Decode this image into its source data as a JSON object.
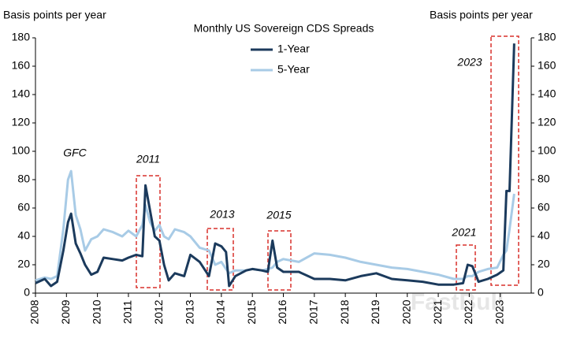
{
  "chart_data": {
    "type": "line",
    "title": "Monthly US Sovereign CDS Spreads",
    "y_label": "Basis points per year",
    "y2_label": "Basis points per year",
    "watermark": "FastBull",
    "x": [
      2008.0,
      2008.3,
      2008.5,
      2008.7,
      2008.9,
      2009.05,
      2009.15,
      2009.3,
      2009.45,
      2009.6,
      2009.8,
      2010.0,
      2010.2,
      2010.5,
      2010.8,
      2011.0,
      2011.25,
      2011.45,
      2011.55,
      2011.7,
      2011.85,
      2012.0,
      2012.15,
      2012.3,
      2012.5,
      2012.8,
      2013.0,
      2013.3,
      2013.6,
      2013.8,
      2014.0,
      2014.15,
      2014.25,
      2014.45,
      2014.8,
      2015.0,
      2015.3,
      2015.5,
      2015.65,
      2015.8,
      2016.0,
      2016.5,
      2017.0,
      2017.5,
      2018.0,
      2018.5,
      2019.0,
      2019.5,
      2020.0,
      2020.5,
      2021.0,
      2021.5,
      2021.8,
      2021.95,
      2022.1,
      2022.3,
      2022.6,
      2022.9,
      2023.1,
      2023.2,
      2023.3,
      2023.45
    ],
    "series": [
      {
        "name": "1-Year",
        "color": "#1b3a5c",
        "values": [
          7,
          10,
          5,
          8,
          30,
          50,
          56,
          35,
          28,
          20,
          13,
          15,
          25,
          24,
          23,
          25,
          27,
          26,
          76,
          58,
          40,
          37,
          20,
          9,
          14,
          12,
          27,
          22,
          12,
          35,
          33,
          29,
          5,
          12,
          16,
          17,
          16,
          15,
          37,
          18,
          15,
          15,
          10,
          10,
          9,
          12,
          14,
          10,
          9,
          8,
          6,
          6,
          7,
          20,
          19,
          8,
          10,
          13,
          16,
          72,
          72,
          176
        ]
      },
      {
        "name": "5-Year",
        "color": "#a8cbe6",
        "values": [
          9,
          11,
          10,
          12,
          45,
          80,
          86,
          55,
          45,
          30,
          38,
          40,
          45,
          43,
          40,
          44,
          40,
          48,
          62,
          50,
          44,
          48,
          40,
          38,
          45,
          43,
          40,
          32,
          30,
          20,
          22,
          17,
          14,
          16,
          16,
          17,
          16,
          17,
          18,
          22,
          24,
          22,
          28,
          27,
          25,
          22,
          20,
          18,
          17,
          15,
          13,
          10,
          10,
          12,
          12,
          15,
          17,
          18,
          27,
          30,
          45,
          70
        ]
      }
    ],
    "xlim": [
      2008,
      2024
    ],
    "xticks": [
      2008,
      2009,
      2010,
      2011,
      2012,
      2013,
      2014,
      2015,
      2016,
      2017,
      2018,
      2019,
      2020,
      2021,
      2022,
      2023
    ],
    "ylim": [
      0,
      180
    ],
    "yticks": [
      0,
      20,
      40,
      60,
      80,
      100,
      120,
      140,
      160,
      180
    ],
    "y2lim": [
      0,
      180
    ],
    "y2ticks": [
      0,
      20,
      40,
      60,
      80,
      100,
      120,
      140,
      160,
      180
    ],
    "annotations": [
      "GFC",
      "2011",
      "2013",
      "2015",
      "2021",
      "2023"
    ]
  }
}
